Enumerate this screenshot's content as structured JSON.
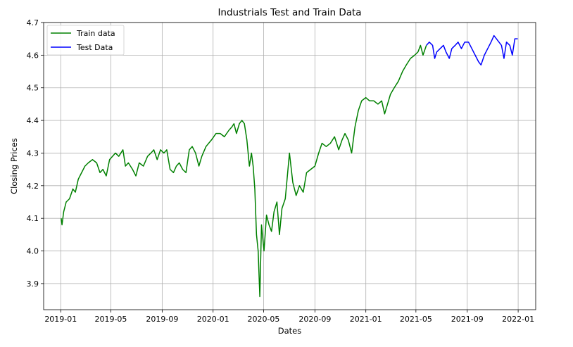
{
  "chart_data": {
    "type": "line",
    "title": "Industrials Test and Train Data",
    "xlabel": "Dates",
    "ylabel": "Closing Prices",
    "xlim": [
      "2018-11-21",
      "2022-02-12"
    ],
    "ylim": [
      3.82,
      4.7
    ],
    "grid": true,
    "legend_position": "top-left",
    "x_ticks": [
      "2019-01",
      "2019-05",
      "2019-09",
      "2020-01",
      "2020-05",
      "2020-09",
      "2021-01",
      "2021-05",
      "2021-09",
      "2022-01"
    ],
    "y_ticks": [
      "3.9",
      "4.0",
      "4.1",
      "4.2",
      "4.3",
      "4.4",
      "4.5",
      "4.6",
      "4.7"
    ],
    "series": [
      {
        "name": "Train data",
        "color": "#008000",
        "points": [
          [
            "2019-01-02",
            4.1
          ],
          [
            "2019-01-04",
            4.08
          ],
          [
            "2019-01-08",
            4.12
          ],
          [
            "2019-01-14",
            4.15
          ],
          [
            "2019-01-22",
            4.16
          ],
          [
            "2019-01-30",
            4.19
          ],
          [
            "2019-02-05",
            4.18
          ],
          [
            "2019-02-12",
            4.22
          ],
          [
            "2019-02-20",
            4.24
          ],
          [
            "2019-02-28",
            4.26
          ],
          [
            "2019-03-08",
            4.27
          ],
          [
            "2019-03-18",
            4.28
          ],
          [
            "2019-03-28",
            4.27
          ],
          [
            "2019-04-05",
            4.24
          ],
          [
            "2019-04-12",
            4.25
          ],
          [
            "2019-04-20",
            4.23
          ],
          [
            "2019-04-28",
            4.28
          ],
          [
            "2019-05-05",
            4.29
          ],
          [
            "2019-05-12",
            4.3
          ],
          [
            "2019-05-20",
            4.29
          ],
          [
            "2019-05-30",
            4.31
          ],
          [
            "2019-06-05",
            4.26
          ],
          [
            "2019-06-12",
            4.27
          ],
          [
            "2019-06-22",
            4.25
          ],
          [
            "2019-06-30",
            4.23
          ],
          [
            "2019-07-08",
            4.27
          ],
          [
            "2019-07-18",
            4.26
          ],
          [
            "2019-07-28",
            4.29
          ],
          [
            "2019-08-05",
            4.3
          ],
          [
            "2019-08-12",
            4.31
          ],
          [
            "2019-08-20",
            4.28
          ],
          [
            "2019-08-28",
            4.31
          ],
          [
            "2019-09-05",
            4.3
          ],
          [
            "2019-09-12",
            4.31
          ],
          [
            "2019-09-20",
            4.25
          ],
          [
            "2019-09-28",
            4.24
          ],
          [
            "2019-10-05",
            4.26
          ],
          [
            "2019-10-12",
            4.27
          ],
          [
            "2019-10-20",
            4.25
          ],
          [
            "2019-10-28",
            4.24
          ],
          [
            "2019-11-05",
            4.31
          ],
          [
            "2019-11-12",
            4.32
          ],
          [
            "2019-11-20",
            4.3
          ],
          [
            "2019-11-28",
            4.26
          ],
          [
            "2019-12-05",
            4.29
          ],
          [
            "2019-12-15",
            4.32
          ],
          [
            "2019-12-28",
            4.34
          ],
          [
            "2020-01-08",
            4.36
          ],
          [
            "2020-01-18",
            4.36
          ],
          [
            "2020-01-28",
            4.35
          ],
          [
            "2020-02-08",
            4.37
          ],
          [
            "2020-02-15",
            4.38
          ],
          [
            "2020-02-20",
            4.39
          ],
          [
            "2020-02-26",
            4.36
          ],
          [
            "2020-03-04",
            4.39
          ],
          [
            "2020-03-10",
            4.4
          ],
          [
            "2020-03-16",
            4.39
          ],
          [
            "2020-03-22",
            4.34
          ],
          [
            "2020-03-28",
            4.26
          ],
          [
            "2020-04-02",
            4.3
          ],
          [
            "2020-04-06",
            4.26
          ],
          [
            "2020-04-10",
            4.19
          ],
          [
            "2020-04-14",
            4.05
          ],
          [
            "2020-04-18",
            4.0
          ],
          [
            "2020-04-22",
            3.86
          ],
          [
            "2020-04-26",
            4.08
          ],
          [
            "2020-05-02",
            4.0
          ],
          [
            "2020-05-08",
            4.11
          ],
          [
            "2020-05-14",
            4.08
          ],
          [
            "2020-05-20",
            4.06
          ],
          [
            "2020-05-26",
            4.12
          ],
          [
            "2020-06-02",
            4.15
          ],
          [
            "2020-06-08",
            4.05
          ],
          [
            "2020-06-14",
            4.13
          ],
          [
            "2020-06-22",
            4.16
          ],
          [
            "2020-07-02",
            4.3
          ],
          [
            "2020-07-10",
            4.21
          ],
          [
            "2020-07-18",
            4.17
          ],
          [
            "2020-07-26",
            4.2
          ],
          [
            "2020-08-04",
            4.18
          ],
          [
            "2020-08-12",
            4.24
          ],
          [
            "2020-08-22",
            4.25
          ],
          [
            "2020-09-01",
            4.26
          ],
          [
            "2020-09-10",
            4.3
          ],
          [
            "2020-09-18",
            4.33
          ],
          [
            "2020-09-28",
            4.32
          ],
          [
            "2020-10-08",
            4.33
          ],
          [
            "2020-10-18",
            4.35
          ],
          [
            "2020-10-28",
            4.31
          ],
          [
            "2020-11-05",
            4.34
          ],
          [
            "2020-11-12",
            4.36
          ],
          [
            "2020-11-20",
            4.34
          ],
          [
            "2020-11-28",
            4.3
          ],
          [
            "2020-12-06",
            4.38
          ],
          [
            "2020-12-14",
            4.43
          ],
          [
            "2020-12-22",
            4.46
          ],
          [
            "2021-01-01",
            4.47
          ],
          [
            "2021-01-10",
            4.46
          ],
          [
            "2021-01-20",
            4.46
          ],
          [
            "2021-01-30",
            4.45
          ],
          [
            "2021-02-08",
            4.46
          ],
          [
            "2021-02-15",
            4.42
          ],
          [
            "2021-02-22",
            4.45
          ],
          [
            "2021-03-01",
            4.48
          ],
          [
            "2021-03-10",
            4.5
          ],
          [
            "2021-03-20",
            4.52
          ],
          [
            "2021-03-30",
            4.55
          ],
          [
            "2021-04-08",
            4.57
          ],
          [
            "2021-04-18",
            4.59
          ],
          [
            "2021-04-28",
            4.6
          ],
          [
            "2021-05-06",
            4.61
          ],
          [
            "2021-05-12",
            4.63
          ],
          [
            "2021-05-18",
            4.6
          ],
          [
            "2021-05-26",
            4.63
          ]
        ]
      },
      {
        "name": "Test Data",
        "color": "#0000ff",
        "points": [
          [
            "2021-05-26",
            4.63
          ],
          [
            "2021-06-02",
            4.64
          ],
          [
            "2021-06-10",
            4.63
          ],
          [
            "2021-06-15",
            4.59
          ],
          [
            "2021-06-20",
            4.61
          ],
          [
            "2021-06-28",
            4.62
          ],
          [
            "2021-07-06",
            4.63
          ],
          [
            "2021-07-12",
            4.61
          ],
          [
            "2021-07-20",
            4.59
          ],
          [
            "2021-07-26",
            4.62
          ],
          [
            "2021-08-03",
            4.63
          ],
          [
            "2021-08-10",
            4.64
          ],
          [
            "2021-08-18",
            4.62
          ],
          [
            "2021-08-26",
            4.64
          ],
          [
            "2021-09-04",
            4.64
          ],
          [
            "2021-09-12",
            4.62
          ],
          [
            "2021-09-20",
            4.6
          ],
          [
            "2021-09-28",
            4.58
          ],
          [
            "2021-10-04",
            4.57
          ],
          [
            "2021-10-12",
            4.6
          ],
          [
            "2021-10-20",
            4.62
          ],
          [
            "2021-10-28",
            4.64
          ],
          [
            "2021-11-04",
            4.66
          ],
          [
            "2021-11-10",
            4.65
          ],
          [
            "2021-11-16",
            4.64
          ],
          [
            "2021-11-22",
            4.63
          ],
          [
            "2021-11-28",
            4.59
          ],
          [
            "2021-12-04",
            4.64
          ],
          [
            "2021-12-12",
            4.63
          ],
          [
            "2021-12-18",
            4.6
          ],
          [
            "2021-12-24",
            4.65
          ],
          [
            "2021-12-31",
            4.65
          ]
        ]
      }
    ]
  }
}
